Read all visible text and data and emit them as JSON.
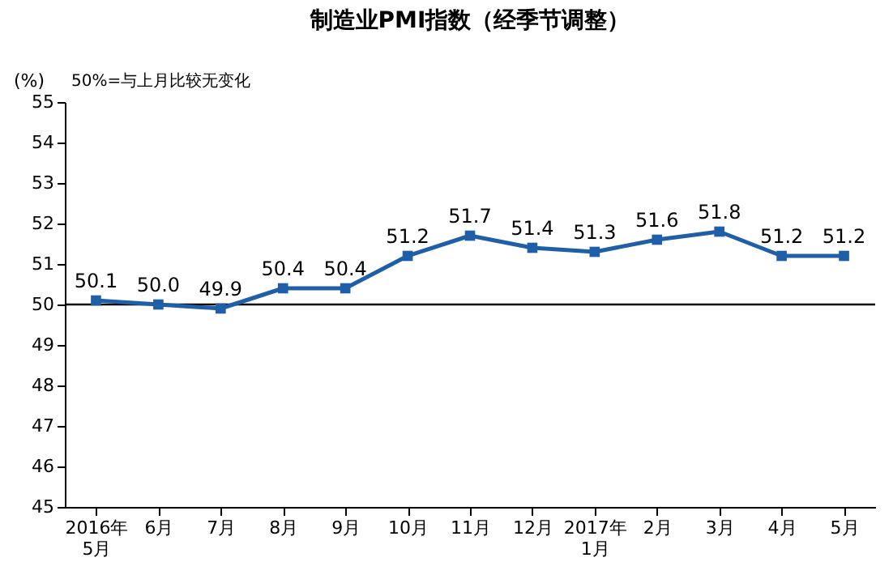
{
  "chart_data": {
    "type": "line",
    "title": "制造业PMI指数（经季节调整）",
    "ylabel": "(%)",
    "annotations": [
      "50%=与上月比较无变化"
    ],
    "categories": [
      "2016年\n5月",
      "6月",
      "7月",
      "8月",
      "9月",
      "10月",
      "11月",
      "12月",
      "2017年\n1月",
      "2月",
      "3月",
      "4月",
      "5月"
    ],
    "series": [
      {
        "color": "#1f5fa8",
        "values": [
          50.1,
          50.0,
          49.9,
          50.4,
          50.4,
          51.2,
          51.7,
          51.4,
          51.3,
          51.6,
          51.8,
          51.2,
          51.2
        ],
        "value_labels": [
          "50.1",
          "50.0",
          "49.9",
          "50.4",
          "50.4",
          "51.2",
          "51.7",
          "51.4",
          "51.3",
          "51.6",
          "51.8",
          "51.2",
          "51.2"
        ]
      }
    ],
    "ylim": [
      45,
      55
    ],
    "yticks": [
      45,
      46,
      47,
      48,
      49,
      50,
      51,
      52,
      53,
      54,
      55
    ],
    "ref_lines": [
      {
        "axis": "y",
        "value": 50,
        "color": "#000000"
      }
    ],
    "marker": "square",
    "grid": false
  }
}
